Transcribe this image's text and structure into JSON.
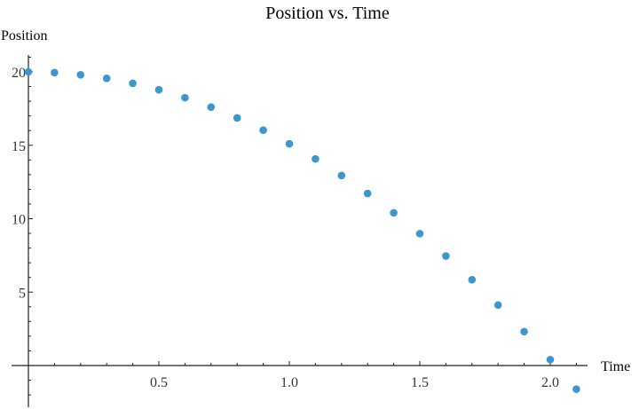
{
  "chart_data": {
    "type": "scatter",
    "title": "Position vs. Time",
    "xlabel": "Time",
    "ylabel": "Position",
    "xlim": [
      0,
      2.1
    ],
    "ylim": [
      -3,
      21
    ],
    "grid": false,
    "legend": null,
    "x_ticks": [
      0.5,
      1.0,
      1.5,
      2.0
    ],
    "x_tick_labels": [
      "0.5",
      "1.0",
      "1.5",
      "2.0"
    ],
    "y_ticks": [
      5,
      10,
      15,
      20
    ],
    "y_tick_labels": [
      "5",
      "10",
      "15",
      "20"
    ],
    "marker_color": "#3d97cf",
    "series": [
      {
        "name": "Position",
        "x": [
          0.0,
          0.1,
          0.2,
          0.3,
          0.4,
          0.5,
          0.6,
          0.7,
          0.8,
          0.9,
          1.0,
          1.1,
          1.2,
          1.3,
          1.4,
          1.5,
          1.6,
          1.7,
          1.8,
          1.9,
          2.0,
          2.1
        ],
        "values": [
          20.0,
          19.95,
          19.8,
          19.56,
          19.22,
          18.78,
          18.24,
          17.6,
          16.86,
          16.03,
          15.1,
          14.07,
          12.94,
          11.72,
          10.4,
          8.98,
          7.46,
          5.84,
          4.12,
          2.31,
          0.4,
          -1.61
        ]
      }
    ]
  }
}
